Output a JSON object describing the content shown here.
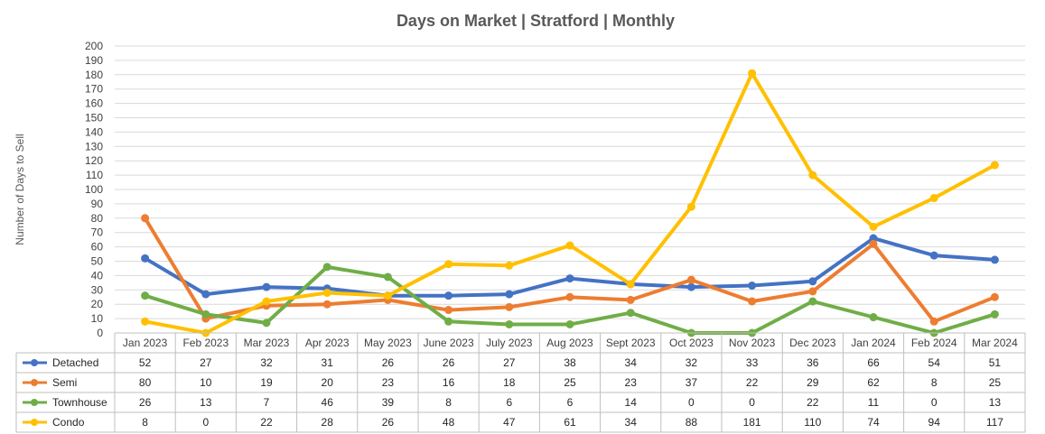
{
  "chart_data": {
    "type": "line",
    "title": "Days on Market | Stratford | Monthly",
    "ylabel": "Number of Days to Sell",
    "xlabel": "",
    "ylim": [
      0,
      200
    ],
    "ytick_step": 10,
    "grid": true,
    "legend": "data-table-left",
    "categories": [
      "Jan 2023",
      "Feb 2023",
      "Mar 2023",
      "Apr 2023",
      "May 2023",
      "June 2023",
      "July 2023",
      "Aug 2023",
      "Sept 2023",
      "Oct 2023",
      "Nov 2023",
      "Dec 2023",
      "Jan 2024",
      "Feb 2024",
      "Mar 2024"
    ],
    "series": [
      {
        "name": "Detached",
        "color": "#4472c4",
        "values": [
          52,
          27,
          32,
          31,
          26,
          26,
          27,
          38,
          34,
          32,
          33,
          36,
          66,
          54,
          51
        ]
      },
      {
        "name": "Semi",
        "color": "#ed7d31",
        "values": [
          80,
          10,
          19,
          20,
          23,
          16,
          18,
          25,
          23,
          37,
          22,
          29,
          62,
          8,
          25
        ]
      },
      {
        "name": "Townhouse",
        "color": "#70ad47",
        "values": [
          26,
          13,
          7,
          46,
          39,
          8,
          6,
          6,
          14,
          0,
          0,
          22,
          11,
          0,
          13
        ]
      },
      {
        "name": "Condo",
        "color": "#ffc000",
        "values": [
          8,
          0,
          22,
          28,
          26,
          48,
          47,
          61,
          34,
          88,
          181,
          110,
          74,
          94,
          117
        ]
      }
    ]
  }
}
